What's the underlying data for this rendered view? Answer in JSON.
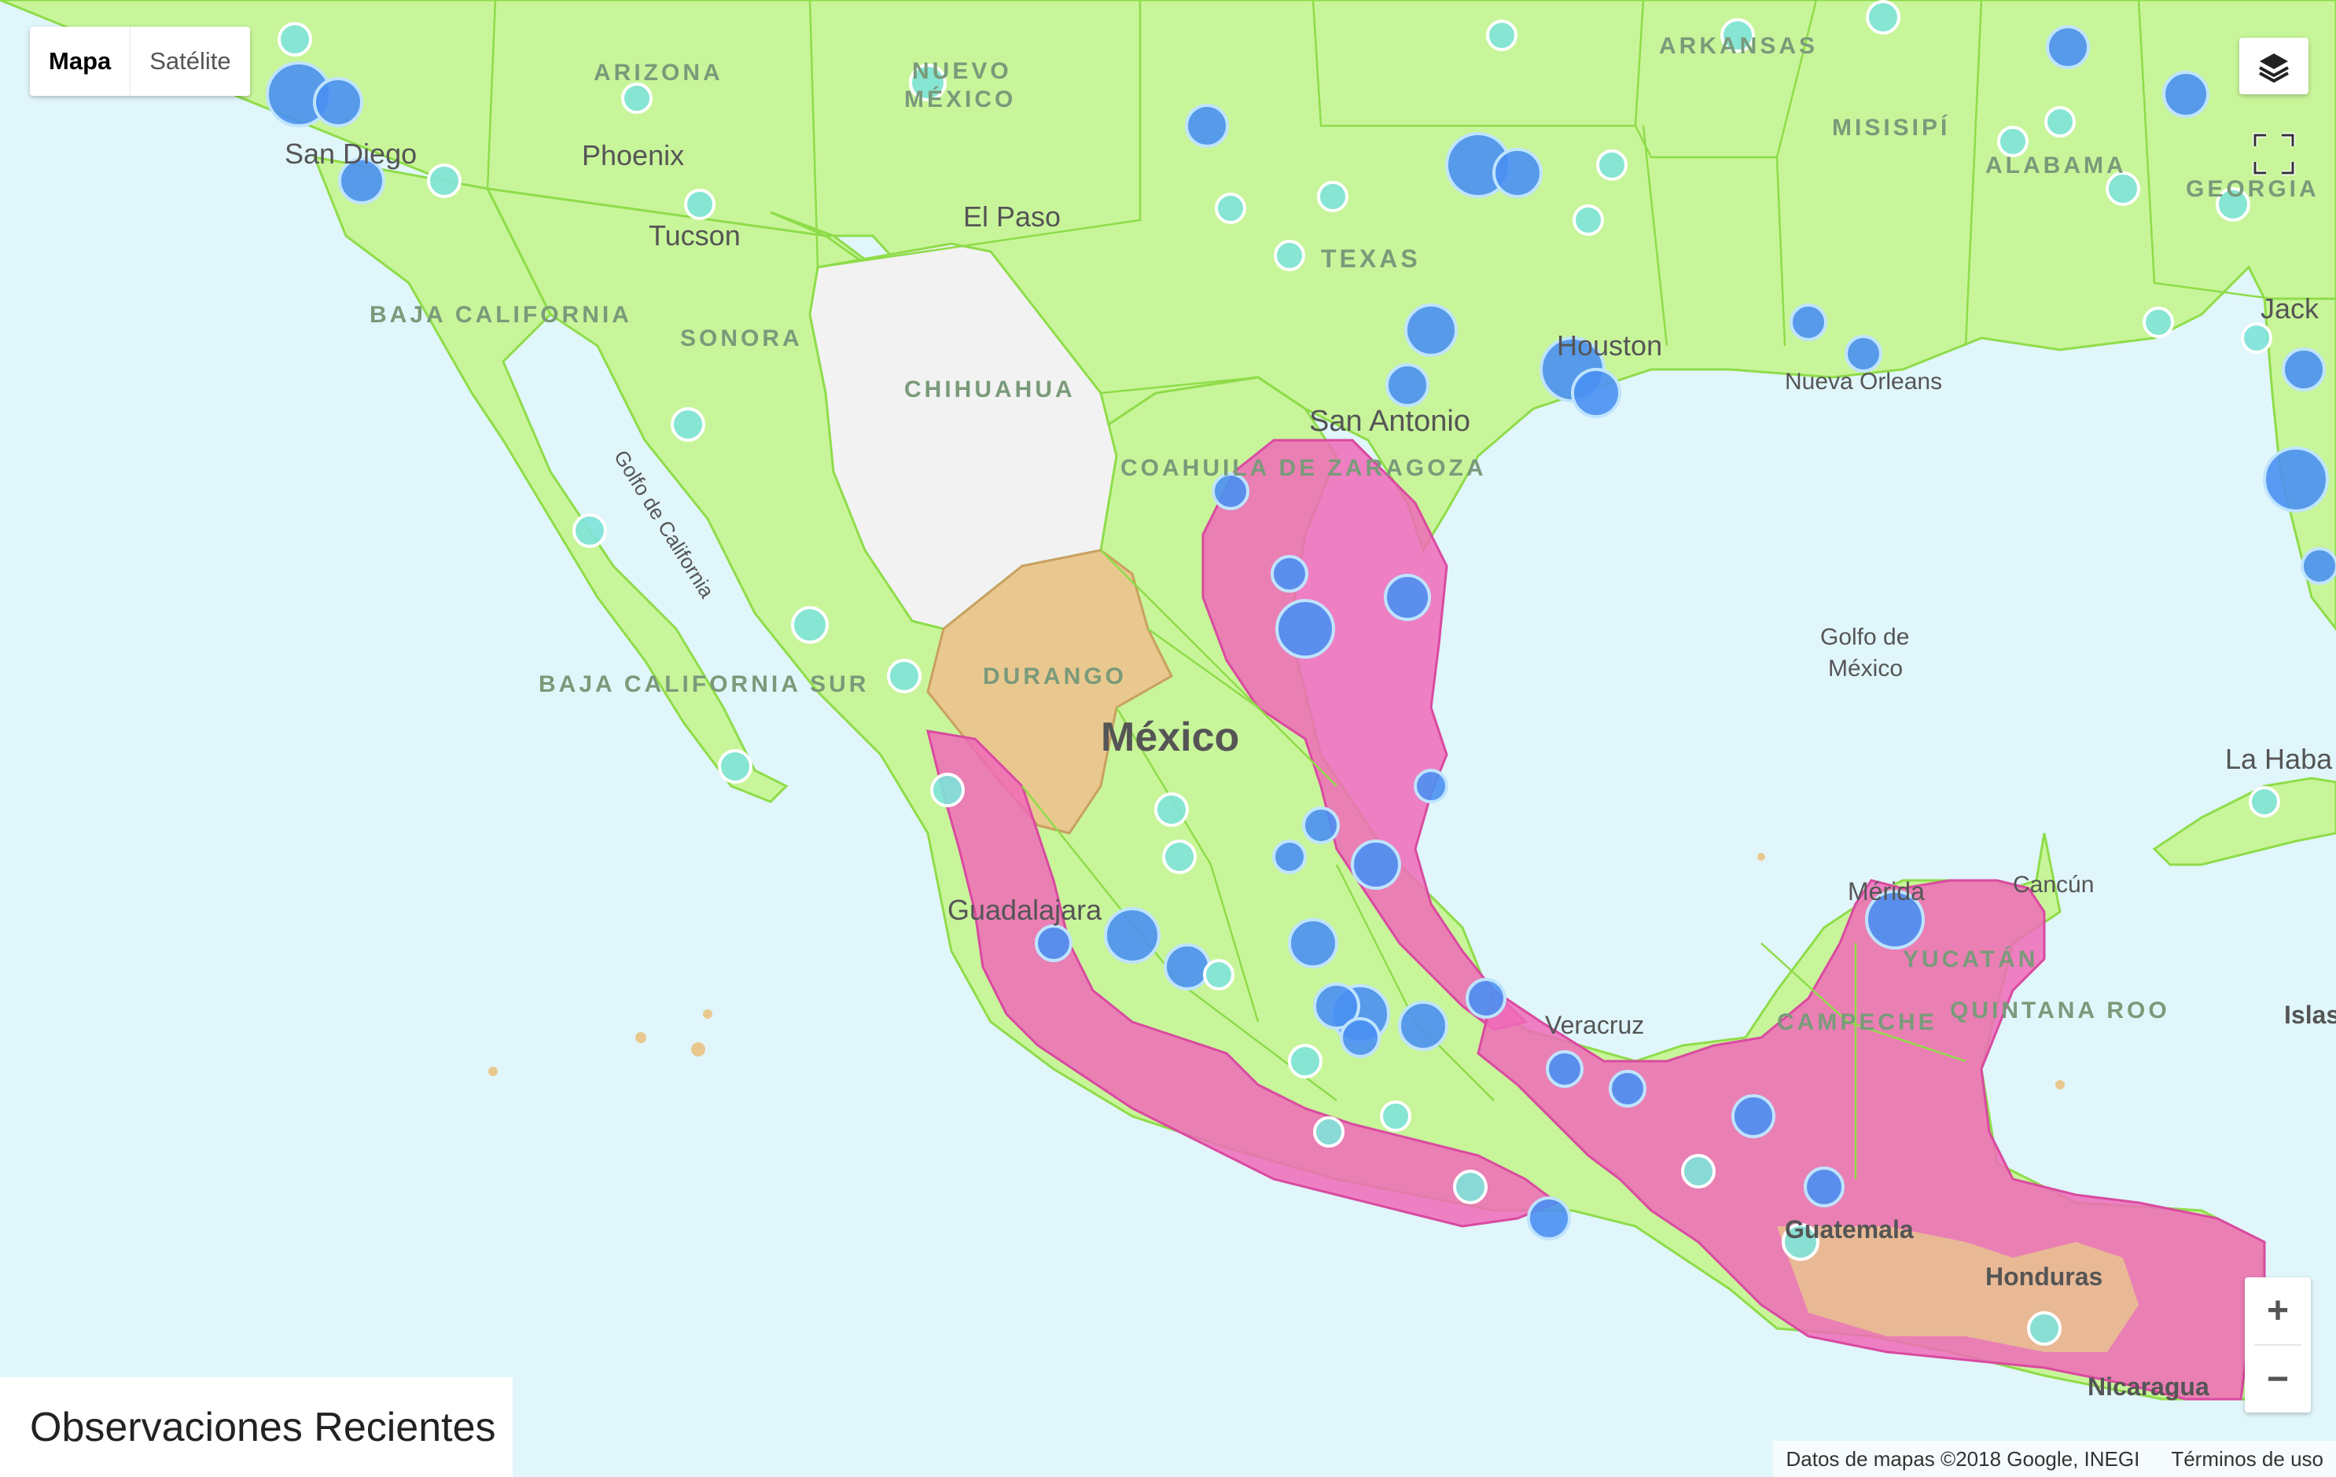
{
  "map_type": {
    "map_label": "Mapa",
    "satellite_label": "Satélite",
    "selected": "Mapa"
  },
  "zoom": {
    "in_label": "+",
    "out_label": "−"
  },
  "icons": {
    "layers": "layers-icon",
    "fullscreen": "fullscreen-icon"
  },
  "panel": {
    "title": "Observaciones Recientes"
  },
  "attribution": {
    "data": "Datos de mapas ©2018 Google, INEGI",
    "terms": "Términos de uso"
  },
  "colors": {
    "land": "#c8f59a",
    "water": "#e0f6fb",
    "range": "#f06ab8",
    "durango": "#e9c88f",
    "chihuahua": "#f2f2f2",
    "observation": "#4a90f2",
    "observation_light": "#7ee3d9"
  },
  "labels": {
    "arizona": "ARIZONA",
    "nuevo_mexico": "NUEVO MÉXICO",
    "arkansas": "ARKANSAS",
    "misisipi": "MISISIPÍ",
    "alabama": "ALABAMA",
    "georgia": "GEORGIA",
    "texas": "TEXAS",
    "baja_california": "BAJA CALIFORNIA",
    "sonora": "SONORA",
    "chihuahua": "CHIHUAHUA",
    "coahuila": "COAHUILA DE ZARAGOZA",
    "durango": "DURANGO",
    "baja_california_sur": "BAJA CALIFORNIA SUR",
    "yucatan": "YUCATÁN",
    "campeche": "CAMPECHE",
    "quintana_roo": "QUINTANA ROO",
    "phoenix": "Phoenix",
    "tucson": "Tucson",
    "el_paso": "El Paso",
    "san_diego": "San Diego",
    "houston": "Houston",
    "san_antonio": "San Antonio",
    "nueva_orleans": "Nueva Orleans",
    "jacksonville": "Jack",
    "mexico": "México",
    "golfo_mexico": "Golfo de México",
    "golfo_california": "Golfo de California",
    "guadalajara": "Guadalajara",
    "veracruz": "Veracruz",
    "merida": "Mérida",
    "cancun": "Cancún",
    "la_habana": "La Haba",
    "islas": "Islas",
    "guatemala": "Guatemala",
    "honduras": "Honduras",
    "nicaragua": "Nicaragua"
  }
}
